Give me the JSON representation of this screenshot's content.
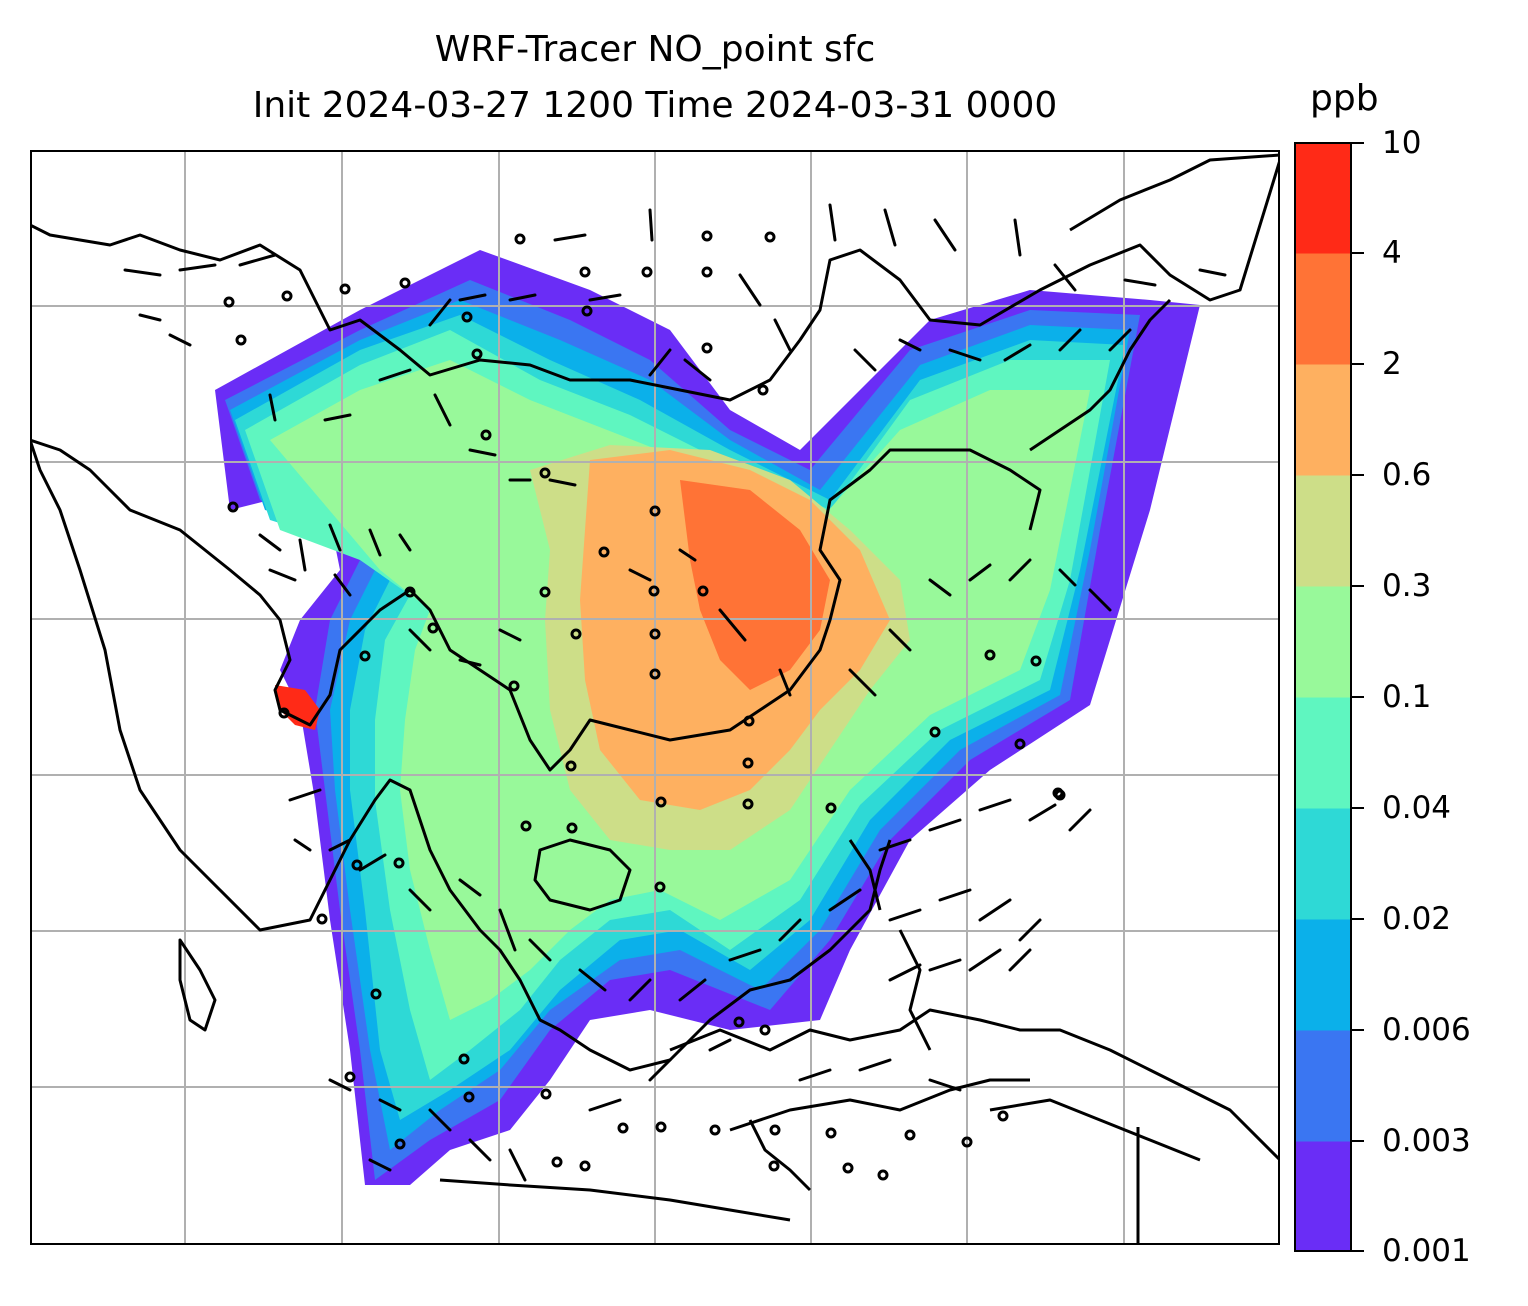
{
  "title": {
    "line1": "WRF-Tracer NO_point sfc",
    "line2": "Init 2024-03-27 1200 Time 2024-03-31 0000"
  },
  "colorbar": {
    "unit": "ppb",
    "levels": [
      "0.001",
      "0.003",
      "0.006",
      "0.02",
      "0.04",
      "0.1",
      "0.3",
      "0.6",
      "2",
      "4",
      "10"
    ],
    "colors": [
      "#6a2df6",
      "#3a76f2",
      "#0bb0ea",
      "#2ed9d6",
      "#5ff6c0",
      "#98f99a",
      "#cdde88",
      "#feb060",
      "#ff7336",
      "#ff2a17"
    ]
  },
  "map": {
    "projection_grid": "on",
    "grid_color": "#b0b0b0",
    "coast_color": "#000000"
  }
}
